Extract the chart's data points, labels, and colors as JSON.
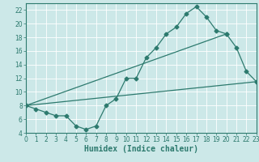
{
  "title": "",
  "xlabel": "Humidex (Indice chaleur)",
  "bg_color": "#cce8e8",
  "line_color": "#2d7a6e",
  "grid_color": "#b8d8d8",
  "xmin": 0,
  "xmax": 23,
  "ymin": 4,
  "ymax": 23,
  "yticks": [
    4,
    6,
    8,
    10,
    12,
    14,
    16,
    18,
    20,
    22
  ],
  "xticks": [
    0,
    1,
    2,
    3,
    4,
    5,
    6,
    7,
    8,
    9,
    10,
    11,
    12,
    13,
    14,
    15,
    16,
    17,
    18,
    19,
    20,
    21,
    22,
    23
  ],
  "curve1_x": [
    0,
    1,
    2,
    3,
    4,
    5,
    6,
    7,
    8,
    9,
    10,
    11,
    12,
    13,
    14,
    15,
    16,
    17,
    18,
    19,
    20,
    21,
    22,
    23
  ],
  "curve1_y": [
    8.0,
    7.5,
    7.0,
    6.5,
    6.5,
    5.0,
    4.5,
    5.0,
    8.0,
    9.0,
    12.0,
    12.0,
    15.0,
    16.5,
    18.5,
    19.5,
    21.5,
    22.5,
    21.0,
    19.0,
    18.5,
    16.5,
    13.0,
    11.5
  ],
  "curve2_x": [
    0,
    20
  ],
  "curve2_y": [
    8.0,
    18.5
  ],
  "curve3_x": [
    0,
    23
  ],
  "curve3_y": [
    8.0,
    11.5
  ],
  "xlabel_fontsize": 7,
  "tick_fontsize": 5.5
}
